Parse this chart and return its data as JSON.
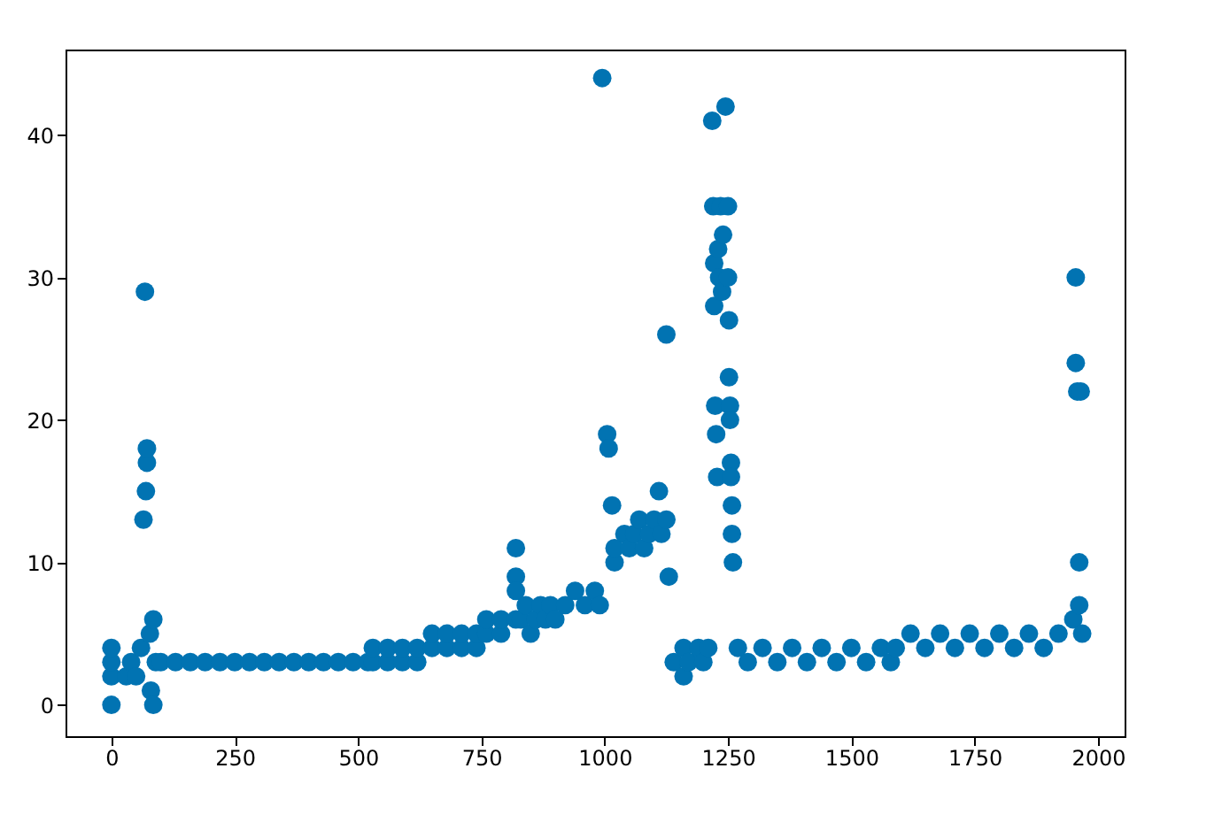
{
  "chart_data": {
    "type": "scatter",
    "marker": "circle",
    "grid": false,
    "xlim": [
      -93,
      2054
    ],
    "ylim": [
      -2.2,
      46
    ],
    "xticks": [
      0,
      250,
      500,
      750,
      1000,
      1250,
      1500,
      1750,
      2000
    ],
    "yticks": [
      0,
      10,
      20,
      30,
      40
    ],
    "series": [
      {
        "color": "#0173b2",
        "x": [
          0,
          0,
          0,
          0,
          30,
          40,
          50,
          60,
          65,
          68,
          70,
          72,
          72,
          78,
          80,
          85,
          85,
          90,
          100,
          130,
          160,
          190,
          220,
          250,
          280,
          310,
          340,
          370,
          400,
          430,
          460,
          490,
          520,
          530,
          530,
          560,
          560,
          590,
          590,
          620,
          620,
          650,
          650,
          680,
          680,
          710,
          710,
          740,
          740,
          760,
          760,
          790,
          790,
          820,
          820,
          820,
          820,
          830,
          840,
          850,
          860,
          870,
          880,
          890,
          900,
          920,
          940,
          960,
          980,
          990,
          995,
          1005,
          1008,
          1015,
          1020,
          1020,
          1040,
          1050,
          1060,
          1070,
          1080,
          1090,
          1100,
          1110,
          1115,
          1125,
          1125,
          1130,
          1140,
          1160,
          1160,
          1170,
          1190,
          1200,
          1210,
          1218,
          1220,
          1222,
          1222,
          1224,
          1226,
          1228,
          1230,
          1232,
          1235,
          1238,
          1240,
          1245,
          1250,
          1250,
          1252,
          1252,
          1254,
          1254,
          1256,
          1256,
          1258,
          1258,
          1260,
          1270,
          1290,
          1320,
          1350,
          1380,
          1410,
          1440,
          1470,
          1500,
          1530,
          1560,
          1580,
          1590,
          1620,
          1650,
          1680,
          1710,
          1740,
          1770,
          1800,
          1830,
          1860,
          1890,
          1920,
          1950,
          1955,
          1955,
          1958,
          1962,
          1962,
          1965,
          1968
        ],
        "values": [
          0,
          2,
          3,
          4,
          2,
          3,
          2,
          4,
          13,
          29,
          15,
          17,
          18,
          5,
          1,
          0,
          6,
          3,
          3,
          3,
          3,
          3,
          3,
          3,
          3,
          3,
          3,
          3,
          3,
          3,
          3,
          3,
          3,
          3,
          4,
          3,
          4,
          3,
          4,
          3,
          4,
          4,
          5,
          4,
          5,
          4,
          5,
          4,
          5,
          5,
          6,
          5,
          6,
          6,
          11,
          9,
          8,
          6,
          7,
          5,
          6,
          7,
          6,
          7,
          6,
          7,
          8,
          7,
          8,
          7,
          44,
          19,
          18,
          14,
          10,
          11,
          12,
          11,
          12,
          13,
          11,
          12,
          13,
          15,
          12,
          26,
          13,
          9,
          3,
          2,
          4,
          3,
          4,
          3,
          4,
          41,
          35,
          31,
          28,
          21,
          19,
          16,
          32,
          30,
          35,
          29,
          33,
          42,
          35,
          30,
          27,
          23,
          21,
          20,
          17,
          16,
          14,
          12,
          10,
          4,
          3,
          4,
          3,
          4,
          3,
          4,
          3,
          4,
          3,
          4,
          3,
          4,
          5,
          4,
          5,
          4,
          5,
          4,
          5,
          4,
          5,
          4,
          5,
          6,
          30,
          24,
          22,
          10,
          7,
          22,
          5
        ]
      }
    ]
  }
}
